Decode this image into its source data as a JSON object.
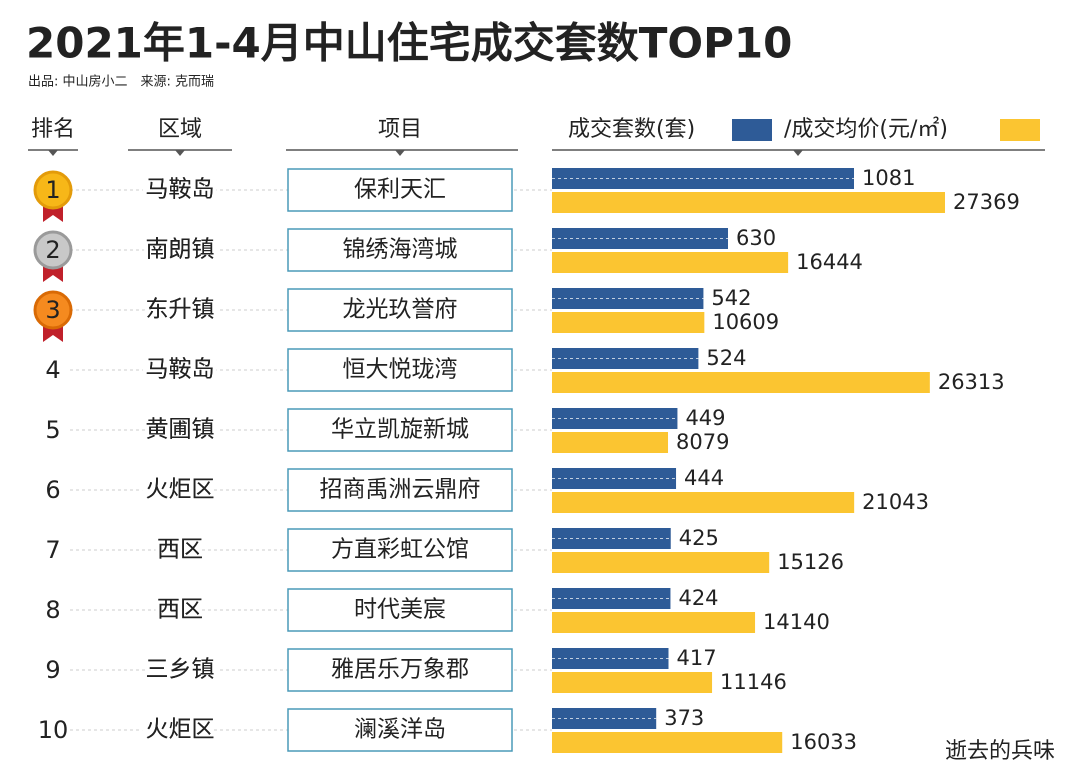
{
  "chart_data": {
    "type": "bar",
    "title": "2021年1-4月中山住宅成交套数TOP10",
    "subtitle": "出品: 中山房小二　来源: 克而瑞",
    "headers": [
      "排名",
      "区域",
      "项目"
    ],
    "ranks": [
      1,
      2,
      3,
      4,
      5,
      6,
      7,
      8,
      9,
      10
    ],
    "districts": [
      "马鞍岛",
      "南朗镇",
      "东升镇",
      "马鞍岛",
      "黄圃镇",
      "火炬区",
      "西区",
      "西区",
      "三乡镇",
      "火炬区"
    ],
    "categories": [
      "保利天汇",
      "锦绣海湾城",
      "龙光玖誉府",
      "恒大悦珑湾",
      "华立凯旋新城",
      "招商禹洲云鼎府",
      "方直彩虹公馆",
      "时代美宸",
      "雅居乐万象郡",
      "澜溪洋岛"
    ],
    "series": [
      {
        "name": "成交套数(套)",
        "color": "#2e5b97",
        "values": [
          1081,
          630,
          542,
          524,
          449,
          444,
          425,
          424,
          417,
          373
        ]
      },
      {
        "name": "/成交均价(元/㎡)",
        "color": "#fbc531",
        "values": [
          27369,
          16444,
          10609,
          26313,
          8079,
          21043,
          15126,
          14140,
          11146,
          16033
        ]
      }
    ],
    "watermark": "逝去的兵味"
  }
}
